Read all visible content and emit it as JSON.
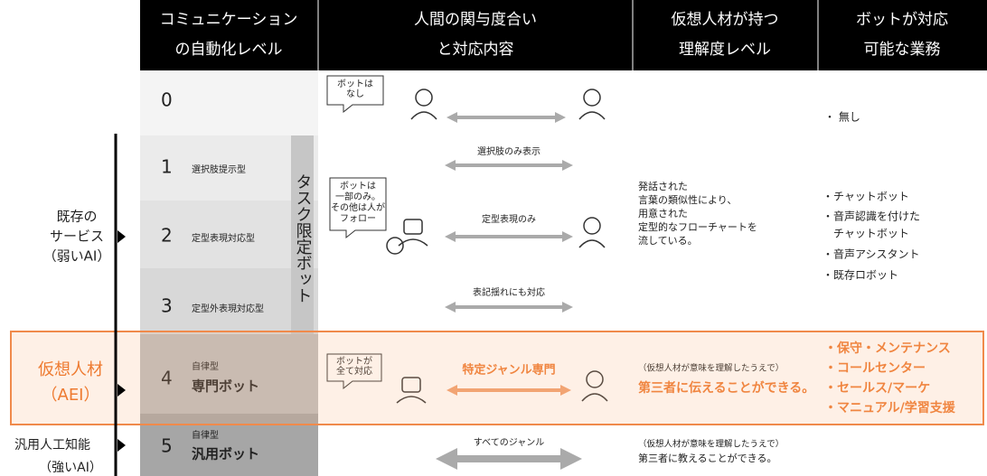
{
  "header": {
    "columns": [
      [
        "コミュニケーション",
        "の自動化レベル"
      ],
      [
        "人間の関与度合い",
        "と対応内容"
      ],
      [
        "仮想人材が持つ",
        "理解度レベル"
      ],
      [
        "ボットが対応",
        "可能な業務"
      ]
    ]
  },
  "side_labels": [
    {
      "lines": [
        "既存の",
        "サービス",
        "（弱いAI）"
      ]
    },
    {
      "lines": [
        "仮想人材",
        "（AEI）"
      ]
    },
    {
      "lines": [
        "汎用人工知能",
        "（強いAI）"
      ]
    }
  ],
  "task_bot_label": "タスク限定ボット",
  "rows": [
    {
      "level": "0"
    },
    {
      "level": "1",
      "type": "選択肢提示型"
    },
    {
      "level": "2",
      "type": "定型表現対応型"
    },
    {
      "level": "3",
      "type": "定型外表現対応型"
    },
    {
      "level": "4",
      "type_sub": "自律型",
      "type": "専門ボット"
    },
    {
      "level": "5",
      "type_sub": "自律型",
      "type": "汎用ボット"
    }
  ],
  "bubbles": [
    [
      "ボットは",
      "なし"
    ],
    [
      "ボットは",
      "一部のみ。",
      "その他は人が",
      "フォロー"
    ],
    [
      "ボットが",
      "全て対応"
    ]
  ],
  "arrows": [
    "選択肢のみ表示",
    "定型表現のみ",
    "表記揺れにも対応",
    "特定ジャンル専門",
    "すべてのジャンル"
  ],
  "understanding": {
    "shared": [
      "発話された",
      "言葉の類似性により、",
      "用意された",
      "定型的なフローチャートを",
      "流している。"
    ],
    "row4": [
      "（仮想人材が意味を理解したうえで）",
      "第三者に伝えることができる。"
    ],
    "row5": [
      "（仮想人材が意味を理解したうえで）",
      "第三者に教えることができる。"
    ]
  },
  "tasks": {
    "row0": "・ 無し",
    "shared": [
      "・チャットボット",
      "・音声認識を付けた",
      "　チャットボット",
      "・音声アシスタント",
      "・既存ロボット"
    ],
    "row4": [
      "・保守・メンテナンス",
      "・コールセンター",
      "・セールス/マーケ",
      "・マニュアル/学習支援"
    ]
  }
}
